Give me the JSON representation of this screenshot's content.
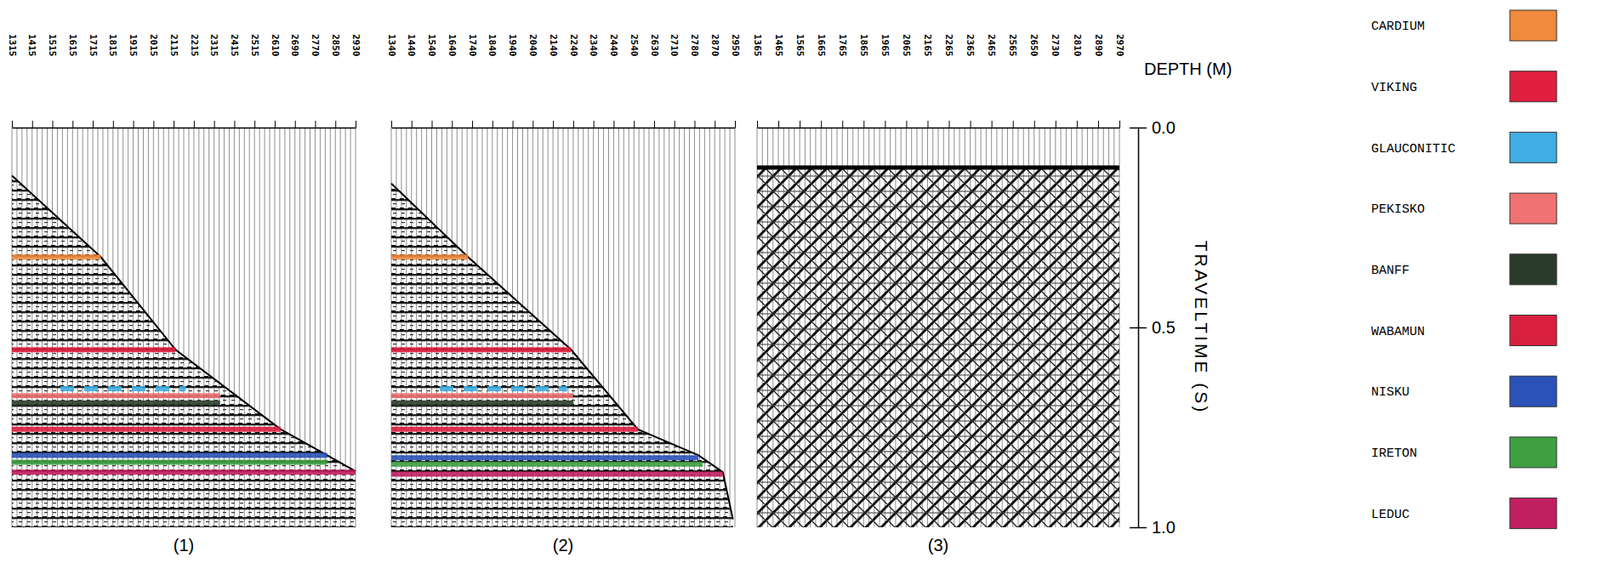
{
  "chart_data": [
    {
      "type": "seismic_section",
      "title": "(1)",
      "categories": [
        "1315",
        "1415",
        "1515",
        "1615",
        "1715",
        "1815",
        "1915",
        "2015",
        "2115",
        "2215",
        "2315",
        "2415",
        "2515",
        "2610",
        "2690",
        "2770",
        "2850",
        "2930"
      ],
      "first_break": {
        "trace": [
          0,
          4.4,
          8.1,
          13.3,
          15.6,
          17
        ],
        "time": [
          0.12,
          0.324,
          0.556,
          0.755,
          0.82,
          0.86
        ]
      },
      "series": [
        {
          "name": "CARDIUM",
          "time": 0.324,
          "trace_start": 0,
          "trace_end": 4.4,
          "line_style": "solid"
        },
        {
          "name": "VIKING",
          "time": 0.556,
          "trace_start": 0,
          "trace_end": 8.1,
          "line_style": "solid"
        },
        {
          "name": "GLAUCONITIC",
          "time": 0.653,
          "trace_start": 2.4,
          "trace_end": 8.6,
          "line_style": "dashed"
        },
        {
          "name": "PEKISKO",
          "time": 0.671,
          "trace_start": 0,
          "trace_end": 10.3,
          "line_style": "solid"
        },
        {
          "name": "BANFF",
          "time": 0.689,
          "trace_start": 0,
          "trace_end": 10.3,
          "line_style": "solid"
        },
        {
          "name": "WABAMUN",
          "time": 0.755,
          "trace_start": 0,
          "trace_end": 13.3,
          "line_style": "solid"
        },
        {
          "name": "NISKU",
          "time": 0.82,
          "trace_start": 0,
          "trace_end": 15.6,
          "line_style": "solid"
        },
        {
          "name": "IRETON",
          "time": 0.837,
          "trace_start": 0,
          "trace_end": 15.6,
          "line_style": "solid"
        },
        {
          "name": "LEDUC",
          "time": 0.862,
          "trace_start": 0,
          "trace_end": 17,
          "line_style": "solid"
        }
      ]
    },
    {
      "type": "seismic_section",
      "title": "(2)",
      "categories": [
        "1340",
        "1440",
        "1540",
        "1640",
        "1740",
        "1840",
        "1940",
        "2040",
        "2140",
        "2240",
        "2340",
        "2440",
        "2540",
        "2630",
        "2710",
        "2780",
        "2870",
        "2950"
      ],
      "first_break": {
        "trace": [
          0,
          3.8,
          8.9,
          12.2,
          15.2,
          16.4,
          16.9
        ],
        "time": [
          0.14,
          0.324,
          0.556,
          0.755,
          0.82,
          0.862,
          0.98
        ]
      },
      "series": [
        {
          "name": "CARDIUM",
          "time": 0.324,
          "trace_start": 0,
          "trace_end": 3.8,
          "line_style": "solid"
        },
        {
          "name": "VIKING",
          "time": 0.556,
          "trace_start": 0,
          "trace_end": 8.9,
          "line_style": "solid"
        },
        {
          "name": "GLAUCONITIC",
          "time": 0.653,
          "trace_start": 2.4,
          "trace_end": 8.7,
          "line_style": "dashed"
        },
        {
          "name": "PEKISKO",
          "time": 0.671,
          "trace_start": 0,
          "trace_end": 9.0,
          "line_style": "solid"
        },
        {
          "name": "BANFF",
          "time": 0.689,
          "trace_start": 0,
          "trace_end": 9.0,
          "line_style": "solid"
        },
        {
          "name": "WABAMUN",
          "time": 0.755,
          "trace_start": 0,
          "trace_end": 12.2,
          "line_style": "solid"
        },
        {
          "name": "NISKU",
          "time": 0.826,
          "trace_start": 0,
          "trace_end": 15.2,
          "line_style": "solid"
        },
        {
          "name": "IRETON",
          "time": 0.842,
          "trace_start": 0,
          "trace_end": 15.4,
          "line_style": "solid"
        },
        {
          "name": "LEDUC",
          "time": 0.867,
          "trace_start": 0,
          "trace_end": 16.4,
          "line_style": "solid"
        }
      ]
    },
    {
      "type": "seismic_section",
      "title": "(3)",
      "categories": [
        "1365",
        "1465",
        "1565",
        "1665",
        "1765",
        "1865",
        "1965",
        "2065",
        "2165",
        "2265",
        "2365",
        "2465",
        "2565",
        "2650",
        "2730",
        "2810",
        "2890",
        "2970"
      ],
      "first_break": {
        "trace": [
          0,
          17
        ],
        "time": [
          0.1,
          0.1
        ]
      },
      "series": []
    }
  ],
  "shared": {
    "x_label": "DEPTH (M)",
    "y_label": "TRAVELTIME (S)",
    "ylim": [
      0,
      1
    ],
    "yticks": [
      {
        "value": 0,
        "label": "0.0"
      },
      0.5,
      {
        "value": 1,
        "label": "1.0"
      }
    ],
    "horizon_key": [
      {
        "name": "CARDIUM",
        "color": "#f08a3c"
      },
      {
        "name": "VIKING",
        "color": "#e0203e"
      },
      {
        "name": "GLAUCONITIC",
        "color": "#3faee2"
      },
      {
        "name": "PEKISKO",
        "color": "#f07272"
      },
      {
        "name": "BANFF",
        "color": "#2b3b2b"
      },
      {
        "name": "WABAMUN",
        "color": "#d81f3f"
      },
      {
        "name": "NISKU",
        "color": "#2a52b8"
      },
      {
        "name": "IRETON",
        "color": "#3fa042"
      },
      {
        "name": "LEDUC",
        "color": "#c21f62"
      }
    ]
  }
}
